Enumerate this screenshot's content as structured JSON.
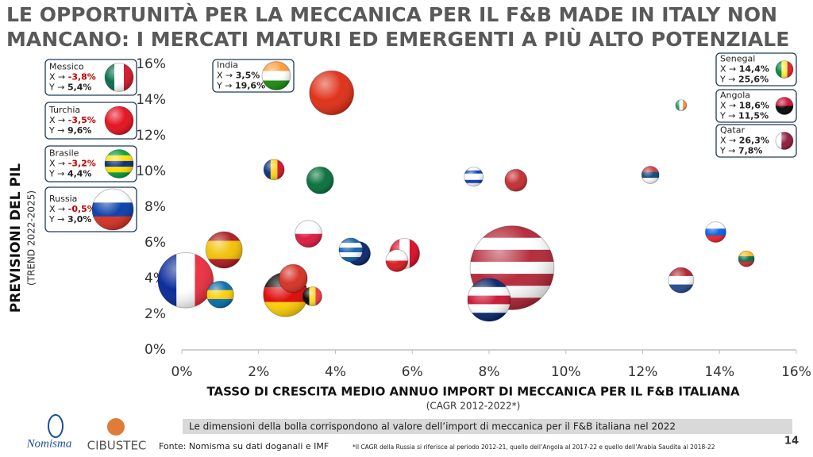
{
  "chart_data": {
    "type": "bubble",
    "title": [
      "LE OPPORTUNITÀ PER LA MECCANICA PER IL F&B MADE IN ITALY NON",
      "MANCANO: I MERCATI MATURI ED EMERGENTI A PIÙ ALTO POTENZIALE"
    ],
    "x_label": "TASSO DI CRESCITA MEDIO ANNUO IMPORT DI MECCANICA PER IL F&B ITALIANA",
    "x_sublabel": "(CAGR 2012-2022*)",
    "y_label": "PREVISIONI DEL PIL",
    "y_sublabel": "(TREND 2022-2025)",
    "xlim": [
      0,
      16
    ],
    "ylim": [
      0,
      16
    ],
    "xticks": [
      {
        "value": 0,
        "label": "0%"
      },
      {
        "value": 2,
        "label": "2%"
      },
      {
        "value": 4,
        "label": "4%"
      },
      {
        "value": 6,
        "label": "6%"
      },
      {
        "value": 8,
        "label": "8%"
      },
      {
        "value": 10,
        "label": "10%"
      },
      {
        "value": 12,
        "label": "12%"
      },
      {
        "value": 14,
        "label": "14%"
      },
      {
        "value": 16,
        "label": "16%"
      }
    ],
    "yticks": [
      {
        "value": 0,
        "label": "0%"
      },
      {
        "value": 2,
        "label": "2%"
      },
      {
        "value": 4,
        "label": "4%"
      },
      {
        "value": 6,
        "label": "6%"
      },
      {
        "value": 8,
        "label": "8%"
      },
      {
        "value": 10,
        "label": "10%"
      },
      {
        "value": 12,
        "label": "12%"
      },
      {
        "value": 14,
        "label": "14%"
      },
      {
        "value": 16,
        "label": "16%"
      }
    ],
    "points": [
      {
        "x": 8.6,
        "y": 4.6,
        "size": 2800,
        "stripes": "h",
        "colors": [
          "#b22234",
          "#fff",
          "#b22234",
          "#fff",
          "#b22234",
          "#fff",
          "#b22234"
        ]
      },
      {
        "x": 0.1,
        "y": 3.9,
        "size": 1220,
        "stripes": "v",
        "colors": [
          "#002395",
          "#fff",
          "#ed2939"
        ]
      },
      {
        "x": 2.7,
        "y": 3.1,
        "size": 780,
        "stripes": "h",
        "colors": [
          "#000",
          "#dd0000",
          "#ffce00"
        ]
      },
      {
        "x": 8.0,
        "y": 2.8,
        "size": 730,
        "stripes": "h",
        "colors": [
          "#012169",
          "#fff",
          "#c8102e",
          "#fff",
          "#012169"
        ]
      },
      {
        "x": 3.9,
        "y": 14.4,
        "size": 780,
        "stripes": "h",
        "colors": [
          "#de2910"
        ]
      },
      {
        "x": 1.1,
        "y": 5.6,
        "size": 530,
        "stripes": "h",
        "colors": [
          "#aa151b",
          "#f1bf00",
          "#f1bf00",
          "#aa151b"
        ]
      },
      {
        "x": 2.9,
        "y": 4.0,
        "size": 320,
        "stripes": "h",
        "colors": [
          "#d52b1e"
        ]
      },
      {
        "x": 5.8,
        "y": 5.4,
        "size": 360,
        "stripes": "v",
        "colors": [
          "#d80621",
          "#fff",
          "#d80621"
        ]
      },
      {
        "x": 1.0,
        "y": 3.1,
        "size": 290,
        "stripes": "h",
        "colors": [
          "#006aa7",
          "#fecc00",
          "#006aa7"
        ]
      },
      {
        "x": 3.6,
        "y": 9.5,
        "size": 290,
        "stripes": "h",
        "colors": [
          "#006c35"
        ]
      },
      {
        "x": 3.3,
        "y": 6.5,
        "size": 290,
        "stripes": "h",
        "colors": [
          "#fff",
          "#dc143c"
        ]
      },
      {
        "x": 4.6,
        "y": 5.4,
        "size": 225,
        "stripes": "h",
        "colors": [
          "#012169"
        ]
      },
      {
        "x": 4.4,
        "y": 5.6,
        "size": 225,
        "stripes": "h",
        "colors": [
          "#0d5eaf",
          "#fff",
          "#0d5eaf",
          "#fff",
          "#0d5eaf"
        ]
      },
      {
        "x": 5.6,
        "y": 5.0,
        "size": 196,
        "stripes": "h",
        "colors": [
          "#fff",
          "#d7141a"
        ]
      },
      {
        "x": 13.0,
        "y": 3.9,
        "size": 256,
        "stripes": "h",
        "colors": [
          "#ae1c28",
          "#fff",
          "#21468b"
        ]
      },
      {
        "x": 8.7,
        "y": 9.5,
        "size": 196,
        "stripes": "h",
        "colors": [
          "#c1272d"
        ]
      },
      {
        "x": 2.4,
        "y": 10.1,
        "size": 169,
        "stripes": "v",
        "colors": [
          "#002b7f",
          "#fcd116",
          "#ce1126"
        ]
      },
      {
        "x": 13.9,
        "y": 6.6,
        "size": 169,
        "stripes": "h",
        "colors": [
          "#fff",
          "#005ce5",
          "#ed1c24"
        ]
      },
      {
        "x": 3.4,
        "y": 3.0,
        "size": 144,
        "stripes": "v",
        "colors": [
          "#000",
          "#fdda24",
          "#ef3340"
        ]
      },
      {
        "x": 7.6,
        "y": 9.7,
        "size": 144,
        "stripes": "h",
        "colors": [
          "#fff",
          "#0038b8",
          "#fff",
          "#fff",
          "#0038b8",
          "#fff"
        ]
      },
      {
        "x": 12.2,
        "y": 9.8,
        "size": 121,
        "stripes": "h",
        "colors": [
          "#c6363c",
          "#0c4076",
          "#fff"
        ]
      },
      {
        "x": 14.7,
        "y": 5.1,
        "size": 100,
        "stripes": "h",
        "colors": [
          "#fdb913",
          "#006a44",
          "#c1272d"
        ]
      },
      {
        "x": 13.0,
        "y": 13.7,
        "size": 49,
        "stripes": "v",
        "colors": [
          "#169b62",
          "#fff",
          "#ff883e"
        ]
      }
    ],
    "note": "Le dimensioni della bolla corrispondono al valore dell’import di meccanica per il F&B italiana nel 2022",
    "callouts": [
      {
        "name": "Messico",
        "x_key": "X →",
        "x_value": "-3,8%",
        "y_key": "Y →",
        "y_value": "5,4%",
        "stripes": "v",
        "colors": [
          "#006847",
          "#fff",
          "#ce1126"
        ]
      },
      {
        "name": "Turchia",
        "x_key": "X →",
        "x_value": "-3,5%",
        "y_key": "Y →",
        "y_value": "9,6%",
        "stripes": "h",
        "colors": [
          "#e30a17"
        ]
      },
      {
        "name": "Brasile",
        "x_key": "X →",
        "x_value": "-3,2%",
        "y_key": "Y →",
        "y_value": "4,4%",
        "stripes": "h",
        "colors": [
          "#009c3b",
          "#ffdf00",
          "#002776",
          "#ffdf00",
          "#009c3b"
        ]
      },
      {
        "name": "Russia",
        "x_key": "X →",
        "x_value": "-0,5%",
        "y_key": "Y →",
        "y_value": "3,0%",
        "stripes": "h",
        "colors": [
          "#fff",
          "#0039a6",
          "#d52b1e"
        ]
      },
      {
        "name": "India",
        "x_key": "X →",
        "x_value": "3,5%",
        "y_key": "Y →",
        "y_value": "19,6%",
        "stripes": "h",
        "colors": [
          "#ff9933",
          "#fff",
          "#138808"
        ]
      },
      {
        "name": "Senegal",
        "x_key": "X →",
        "x_value": "14,4%",
        "y_key": "Y →",
        "y_value": "25,6%",
        "stripes": "v",
        "colors": [
          "#00853f",
          "#fdef42",
          "#e31b23"
        ]
      },
      {
        "name": "Angola",
        "x_key": "X →",
        "x_value": "18,6%",
        "y_key": "Y →",
        "y_value": "11,5%",
        "stripes": "h",
        "colors": [
          "#cc092f",
          "#000"
        ]
      },
      {
        "name": "Qatar",
        "x_key": "X →",
        "x_value": "26,3%",
        "y_key": "Y →",
        "y_value": "7,8%",
        "stripes": "v",
        "colors": [
          "#fff",
          "#8a1538",
          "#8a1538"
        ]
      }
    ]
  },
  "footer": {
    "logo_left": "Nomisma",
    "logo_right": "CIBUSTEC",
    "source": "Fonte: Nomisma su dati doganali e IMF",
    "footnote": "*Il CAGR della Russia si riferisce al periodo 2012-21, quello dell’Angola al 2017-22 e quello dell’Arabia Saudita al 2018-22",
    "page": "14"
  }
}
